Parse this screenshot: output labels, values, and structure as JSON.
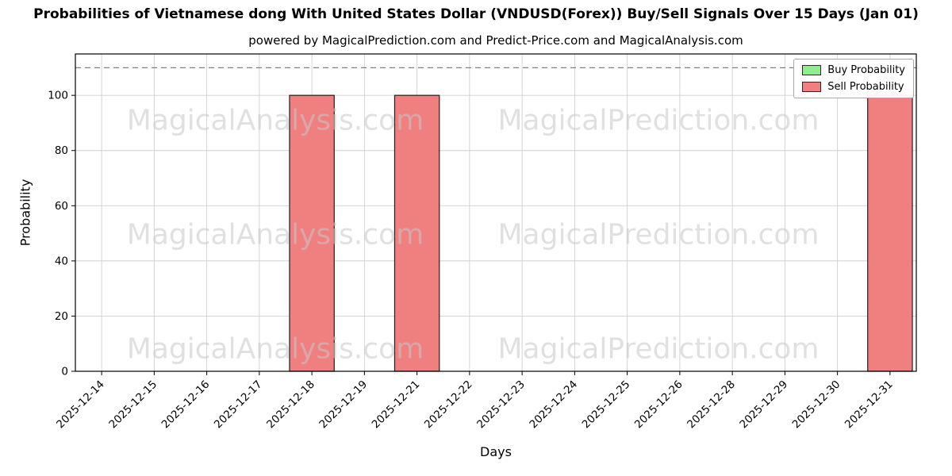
{
  "title": "Probabilities of Vietnamese dong With United States Dollar (VNDUSD(Forex)) Buy/Sell Signals Over 15 Days (Jan 01)",
  "subtitle": "powered by MagicalPrediction.com and Predict-Price.com and MagicalAnalysis.com",
  "chart_data": {
    "type": "bar",
    "title": "Probabilities of Vietnamese dong With United States Dollar (VNDUSD(Forex)) Buy/Sell Signals Over 15 Days (Jan 01)",
    "subtitle": "powered by MagicalPrediction.com and Predict-Price.com and MagicalAnalysis.com",
    "categories": [
      "2025-12-14",
      "2025-12-15",
      "2025-12-16",
      "2025-12-17",
      "2025-12-18",
      "2025-12-19",
      "2025-12-21",
      "2025-12-22",
      "2025-12-23",
      "2025-12-24",
      "2025-12-25",
      "2025-12-26",
      "2025-12-28",
      "2025-12-29",
      "2025-12-30",
      "2025-12-31"
    ],
    "series": [
      {
        "name": "Buy Probability",
        "color": "#90ee90",
        "values": [
          0,
          0,
          0,
          0,
          0,
          0,
          0,
          0,
          0,
          0,
          0,
          0,
          0,
          0,
          0,
          0
        ]
      },
      {
        "name": "Sell Probability",
        "color": "#f08080",
        "values": [
          0,
          0,
          0,
          0,
          100,
          0,
          100,
          0,
          0,
          0,
          0,
          0,
          0,
          0,
          0,
          100
        ]
      }
    ],
    "xlabel": "Days",
    "ylabel": "Probability",
    "ylim": [
      0,
      115
    ],
    "yticks": [
      0,
      20,
      40,
      60,
      80,
      100
    ],
    "threshold_line": {
      "y": 110,
      "style": "dashed",
      "color": "#808080"
    },
    "grid": true,
    "grid_color": "#cfcfcf",
    "bar_edge_color": "#1f1f1f",
    "legend_position": "upper right"
  },
  "watermarks": {
    "left": "MagicalAnalysis.com",
    "right": "MagicalPrediction.com",
    "color": "#c8c8c8"
  }
}
